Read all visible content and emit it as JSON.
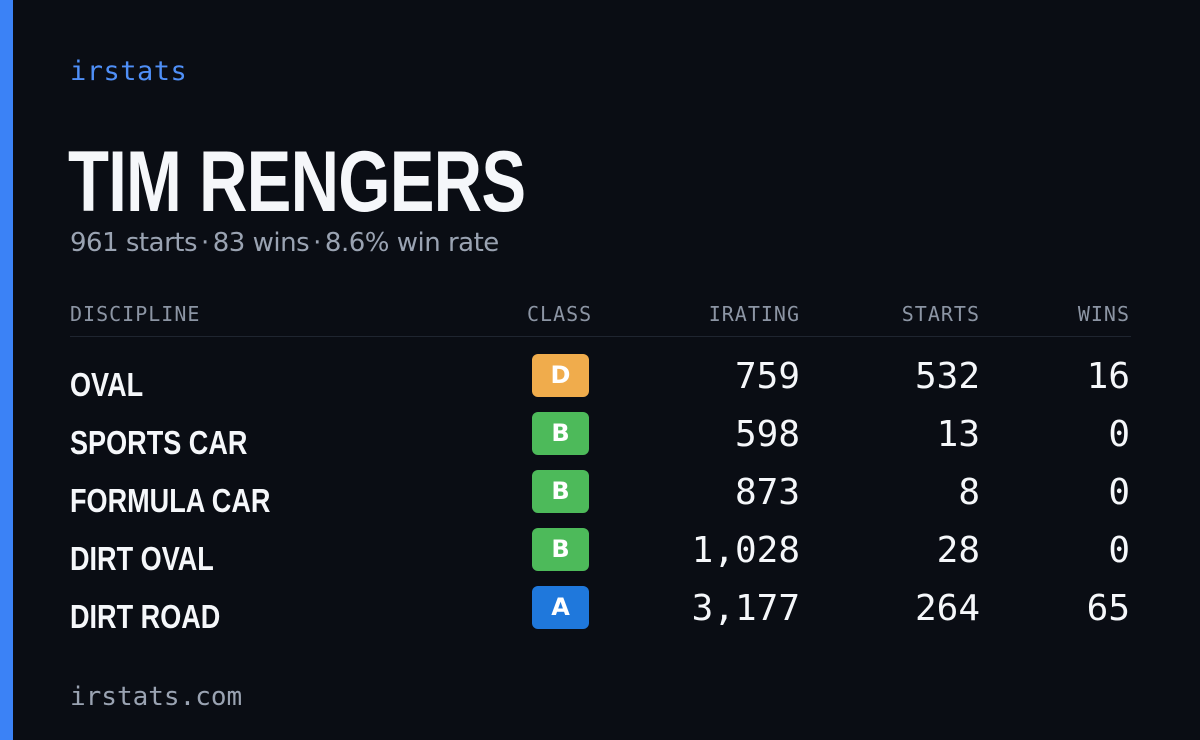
{
  "brand": "irstats",
  "driver": {
    "name": "TIM RENGERS",
    "summary": {
      "starts": "961 starts",
      "wins": "83 wins",
      "win_rate": "8.6% win rate",
      "separator": "·"
    }
  },
  "table": {
    "headers": {
      "discipline": "DISCIPLINE",
      "class": "CLASS",
      "irating": "IRATING",
      "starts": "STARTS",
      "wins": "WINS"
    },
    "rows": [
      {
        "discipline": "OVAL",
        "class": "D",
        "class_color": "#f0ac4c",
        "irating": "759",
        "starts": "532",
        "wins": "16"
      },
      {
        "discipline": "SPORTS CAR",
        "class": "B",
        "class_color": "#4dba5a",
        "irating": "598",
        "starts": "13",
        "wins": "0"
      },
      {
        "discipline": "FORMULA CAR",
        "class": "B",
        "class_color": "#4dba5a",
        "irating": "873",
        "starts": "8",
        "wins": "0"
      },
      {
        "discipline": "DIRT OVAL",
        "class": "B",
        "class_color": "#4dba5a",
        "irating": "1,028",
        "starts": "28",
        "wins": "0"
      },
      {
        "discipline": "DIRT ROAD",
        "class": "A",
        "class_color": "#1f78dc",
        "irating": "3,177",
        "starts": "264",
        "wins": "65"
      }
    ]
  },
  "footer": "irstats.com",
  "colors": {
    "background": "#0a0d14",
    "accent": "#3b82f6",
    "brand": "#4f8ff7",
    "muted_text": "#9aa3b2"
  }
}
